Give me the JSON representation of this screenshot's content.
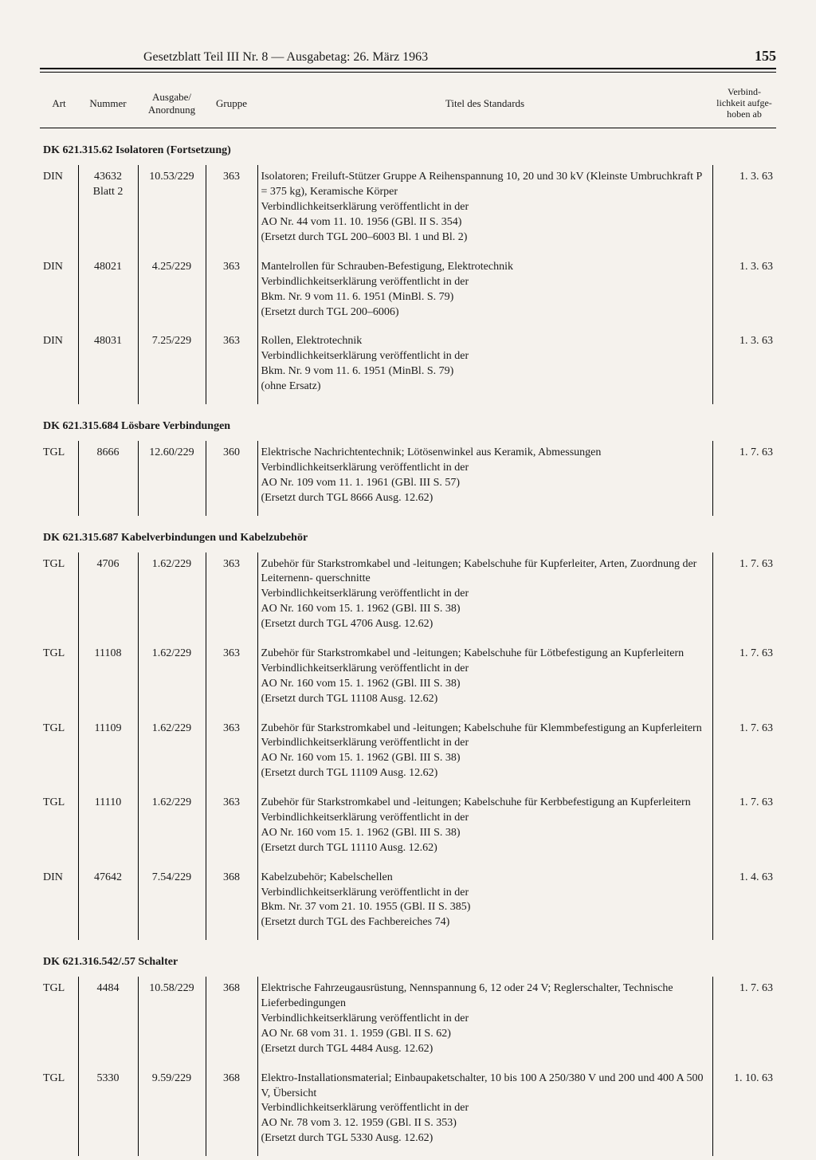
{
  "header": {
    "title": "Gesetzblatt Teil III Nr. 8 — Ausgabetag: 26. März 1963",
    "page": "155"
  },
  "columns": {
    "art": "Art",
    "nummer": "Nummer",
    "ausgabe": "Ausgabe/ Anordnung",
    "gruppe": "Gruppe",
    "titel": "Titel des Standards",
    "verbind": "Verbind- lichkeit aufge- hoben ab"
  },
  "sections": [
    {
      "heading": "DK 621.315.62 Isolatoren (Fortsetzung)",
      "rows": [
        {
          "art": "DIN",
          "num": "43632 Blatt 2",
          "ausg": "10.53/229",
          "grp": "363",
          "titel": [
            "Isolatoren; Freiluft-Stützer Gruppe A Reihenspannung 10, 20 und 30 kV (Kleinste Umbruchkraft P = 375 kg), Keramische Körper",
            "Verbindlichkeitserklärung veröffentlicht in der",
            "AO Nr. 44 vom 11. 10. 1956 (GBl. II S. 354)",
            "(Ersetzt durch TGL 200–6003 Bl. 1 und Bl. 2)"
          ],
          "verb": "1. 3. 63"
        },
        {
          "art": "DIN",
          "num": "48021",
          "ausg": "4.25/229",
          "grp": "363",
          "titel": [
            "Mantelrollen für Schrauben-Befestigung, Elektrotechnik",
            "Verbindlichkeitserklärung veröffentlicht in der",
            "Bkm. Nr. 9 vom 11. 6. 1951 (MinBl. S. 79)",
            "(Ersetzt durch TGL 200–6006)"
          ],
          "verb": "1. 3. 63"
        },
        {
          "art": "DIN",
          "num": "48031",
          "ausg": "7.25/229",
          "grp": "363",
          "titel": [
            "Rollen, Elektrotechnik",
            "Verbindlichkeitserklärung veröffentlicht in der",
            "Bkm. Nr. 9 vom 11. 6. 1951 (MinBl. S. 79)",
            "(ohne Ersatz)"
          ],
          "verb": "1. 3. 63"
        }
      ]
    },
    {
      "heading": "DK 621.315.684 Lösbare Verbindungen",
      "rows": [
        {
          "art": "TGL",
          "num": "8666",
          "ausg": "12.60/229",
          "grp": "360",
          "titel": [
            "Elektrische Nachrichtentechnik; Lötösenwinkel aus Keramik, Abmessungen",
            "Verbindlichkeitserklärung veröffentlicht in der",
            "AO Nr. 109 vom 11. 1. 1961 (GBl. III S. 57)",
            "(Ersetzt durch TGL 8666 Ausg. 12.62)"
          ],
          "verb": "1. 7. 63"
        }
      ]
    },
    {
      "heading": "DK 621.315.687 Kabelverbindungen und Kabelzubehör",
      "rows": [
        {
          "art": "TGL",
          "num": "4706",
          "ausg": "1.62/229",
          "grp": "363",
          "titel": [
            "Zubehör für Starkstromkabel und -leitungen; Kabelschuhe für Kupferleiter, Arten, Zuordnung der Leiternenn- querschnitte",
            "Verbindlichkeitserklärung veröffentlicht in der",
            "AO Nr. 160 vom 15. 1. 1962 (GBl. III S. 38)",
            "(Ersetzt durch TGL 4706 Ausg. 12.62)"
          ],
          "verb": "1. 7. 63"
        },
        {
          "art": "TGL",
          "num": "11108",
          "ausg": "1.62/229",
          "grp": "363",
          "titel": [
            "Zubehör für Starkstromkabel und -leitungen; Kabelschuhe für Lötbefestigung an Kupferleitern",
            "Verbindlichkeitserklärung veröffentlicht in der",
            "AO Nr. 160 vom 15. 1. 1962 (GBl. III S. 38)",
            "(Ersetzt durch TGL 11108 Ausg. 12.62)"
          ],
          "verb": "1. 7. 63"
        },
        {
          "art": "TGL",
          "num": "11109",
          "ausg": "1.62/229",
          "grp": "363",
          "titel": [
            "Zubehör für Starkstromkabel und -leitungen; Kabelschuhe für Klemmbefestigung an Kupferleitern",
            "Verbindlichkeitserklärung veröffentlicht in der",
            "AO Nr. 160 vom 15. 1. 1962 (GBl. III S. 38)",
            "(Ersetzt durch TGL 11109 Ausg. 12.62)"
          ],
          "verb": "1. 7. 63"
        },
        {
          "art": "TGL",
          "num": "11110",
          "ausg": "1.62/229",
          "grp": "363",
          "titel": [
            "Zubehör für Starkstromkabel und -leitungen; Kabelschuhe für Kerbbefestigung an Kupferleitern",
            "Verbindlichkeitserklärung veröffentlicht in der",
            "AO Nr. 160 vom 15. 1. 1962 (GBl. III S. 38)",
            "(Ersetzt durch TGL 11110 Ausg. 12.62)"
          ],
          "verb": "1. 7. 63"
        },
        {
          "art": "DIN",
          "num": "47642",
          "ausg": "7.54/229",
          "grp": "368",
          "titel": [
            "Kabelzubehör; Kabelschellen",
            "Verbindlichkeitserklärung veröffentlicht in der",
            "Bkm. Nr. 37 vom 21. 10. 1955 (GBl. II S. 385)",
            "(Ersetzt durch TGL des Fachbereiches 74)"
          ],
          "verb": "1. 4. 63"
        }
      ]
    },
    {
      "heading": "DK 621.316.542/.57 Schalter",
      "rows": [
        {
          "art": "TGL",
          "num": "4484",
          "ausg": "10.58/229",
          "grp": "368",
          "titel": [
            "Elektrische Fahrzeugausrüstung, Nennspannung 6, 12 oder 24 V; Reglerschalter, Technische Lieferbedingungen",
            "Verbindlichkeitserklärung veröffentlicht in der",
            "AO Nr. 68 vom 31. 1. 1959 (GBl. II S. 62)",
            "(Ersetzt durch TGL 4484 Ausg. 12.62)"
          ],
          "verb": "1. 7. 63"
        },
        {
          "art": "TGL",
          "num": "5330",
          "ausg": "9.59/229",
          "grp": "368",
          "titel": [
            "Elektro-Installationsmaterial; Einbaupaketschalter, 10 bis 100 A 250/380 V und 200 und 400 A 500 V, Übersicht",
            "Verbindlichkeitserklärung veröffentlicht in der",
            "AO Nr. 78 vom 3. 12. 1959 (GBl. II S. 353)",
            "(Ersetzt durch TGL 5330 Ausg. 12.62)"
          ],
          "verb": "1. 10. 63"
        }
      ]
    }
  ]
}
